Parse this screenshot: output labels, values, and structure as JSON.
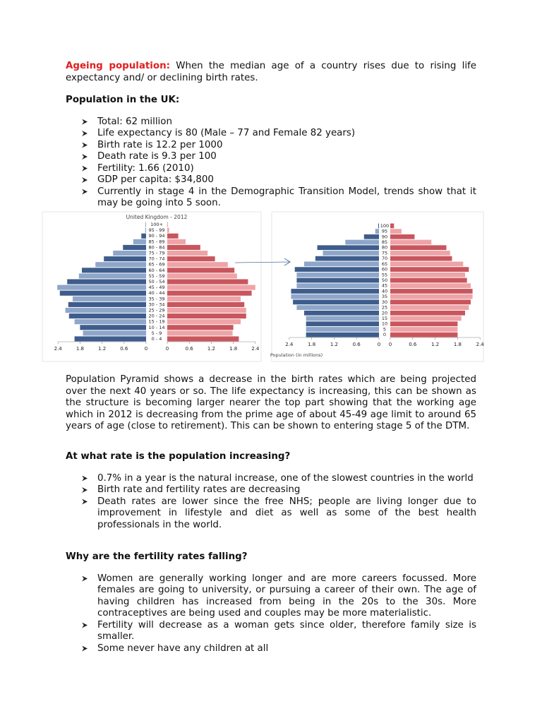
{
  "intro": {
    "term": "Ageing population:",
    "text": "When the median age of a country rises due to rising life expectancy and/ or declining birth rates."
  },
  "section1": {
    "heading": "Population in the UK:",
    "bullets": [
      "Total: 62 million",
      "Life expectancy is 80 (Male – 77 and Female 82 years)",
      "Birth rate is 12.2 per 1000",
      "Death rate is 9.3 per 100",
      "Fertility: 1.66 (2010)",
      "GDP per capita: $34,800",
      "Currently in stage 4 in the Demographic Transition Model, trends show that it may be going into 5 soon."
    ]
  },
  "chart_data": [
    {
      "type": "pyramid",
      "title": "United Kingdom - 2012",
      "categories": [
        "0 - 4",
        "5 - 9",
        "10 - 14",
        "15 - 19",
        "20 - 24",
        "25 - 29",
        "30 - 34",
        "35 - 39",
        "40 - 44",
        "45 - 49",
        "50 - 54",
        "55 - 59",
        "60 - 64",
        "65 - 69",
        "70 - 74",
        "75 - 79",
        "80 - 84",
        "85 - 89",
        "90 - 94",
        "95 - 99",
        "100+"
      ],
      "series": [
        {
          "color": "#3e5d8c",
          "alt_color": "#8ea6c9",
          "values": [
            1.95,
            1.72,
            1.8,
            1.95,
            2.1,
            2.2,
            2.12,
            2.0,
            2.35,
            2.42,
            2.15,
            1.83,
            1.75,
            1.38,
            1.15,
            0.9,
            0.63,
            0.35,
            0.13,
            0.02,
            0.01
          ]
        },
        {
          "color": "#c9565d",
          "alt_color": "#eea4a7",
          "values": [
            1.95,
            1.78,
            1.8,
            2.0,
            2.15,
            2.15,
            2.1,
            2.0,
            2.3,
            2.4,
            2.2,
            1.9,
            1.83,
            1.65,
            1.3,
            1.1,
            0.9,
            0.5,
            0.3,
            0.05,
            0.01
          ]
        }
      ],
      "xlim": [
        0,
        2.4
      ],
      "xticks": [
        0,
        0.6,
        1.2,
        1.8,
        2.4
      ]
    },
    {
      "type": "pyramid",
      "categories": [
        "0",
        "5",
        "10",
        "15",
        "20",
        "25",
        "30",
        "35",
        "40",
        "45",
        "50",
        "55",
        "60",
        "65",
        "70",
        "75",
        "80",
        "85",
        "90",
        "95",
        "100"
      ],
      "series": [
        {
          "color": "#3e5d8c",
          "alt_color": "#8ea6c9",
          "values": [
            1.95,
            1.95,
            1.95,
            1.95,
            2.0,
            2.2,
            2.3,
            2.35,
            2.35,
            2.2,
            2.2,
            2.2,
            2.25,
            2.0,
            1.7,
            1.5,
            1.65,
            0.9,
            0.4,
            0.1,
            0.02
          ]
        },
        {
          "color": "#c9565d",
          "alt_color": "#eea4a7",
          "values": [
            1.8,
            1.8,
            1.8,
            1.9,
            2.0,
            2.1,
            2.15,
            2.2,
            2.2,
            2.15,
            2.05,
            2.0,
            2.1,
            1.95,
            1.65,
            1.6,
            1.5,
            1.1,
            0.65,
            0.3,
            0.1
          ]
        }
      ],
      "xlim": [
        0,
        2.4
      ],
      "xticks": [
        0,
        0.6,
        1.2,
        1.8,
        2.4
      ],
      "xlabel": "Population (in millions)"
    }
  ],
  "paragraph": "Population Pyramid shows a decrease in the birth rates which are being projected over the next 40 years or so. The life expectancy is increasing, this can be shown as the structure is becoming larger nearer the top part showing that the working age which in 2012 is decreasing from the prime age of about 45-49 age limit to around 65 years of age (close to retirement). This can be shown to entering stage 5 of the DTM.",
  "section2": {
    "heading": "At what rate is the population increasing?",
    "bullets": [
      "0.7% in a year is the natural increase, one of the slowest countries in the world",
      "Birth rate and fertility rates are decreasing",
      "Death rates are lower since the free NHS; people are living longer due to improvement in lifestyle and diet as well as some of the best health professionals in the world."
    ]
  },
  "section3": {
    "heading": "Why are the fertility rates falling?",
    "bullets": [
      "Women are generally working longer and are more careers focussed. More females are going to university, or pursuing a career of their own. The age of having children has increased from being in the 20s to the 30s. More contraceptives are being used and couples may be more materialistic.",
      "Fertility will decrease as a woman gets since older, therefore family size is smaller.",
      "Some never have any children at all"
    ]
  }
}
